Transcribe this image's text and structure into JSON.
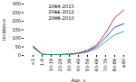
{
  "chart_data": {
    "type": "line",
    "categories": [
      "<1",
      "1-9",
      "10-19",
      "20-29",
      "30-39",
      "40-49",
      "50-59",
      "60-69",
      "70-79",
      "80-89",
      "≥90"
    ],
    "series": [
      {
        "name": "2013–2015",
        "color": "#cc3333",
        "values": [
          55,
          8,
          4,
          6,
          8,
          14,
          30,
          60,
          130,
          220,
          265
        ]
      },
      {
        "name": "2011–2012",
        "color": "#3344bb",
        "values": [
          50,
          7,
          3,
          5,
          7,
          12,
          25,
          50,
          105,
          165,
          185
        ]
      },
      {
        "name": "2008–2010",
        "color": "#44aa88",
        "values": [
          45,
          6,
          3,
          4,
          6,
          10,
          20,
          40,
          80,
          120,
          140
        ]
      }
    ],
    "xlabel": "Age, y",
    "ylabel": "Incidence",
    "ylim": [
      0,
      300
    ],
    "yticks": [
      0,
      50,
      100,
      150,
      200,
      250,
      300
    ],
    "legend": "upper left"
  }
}
